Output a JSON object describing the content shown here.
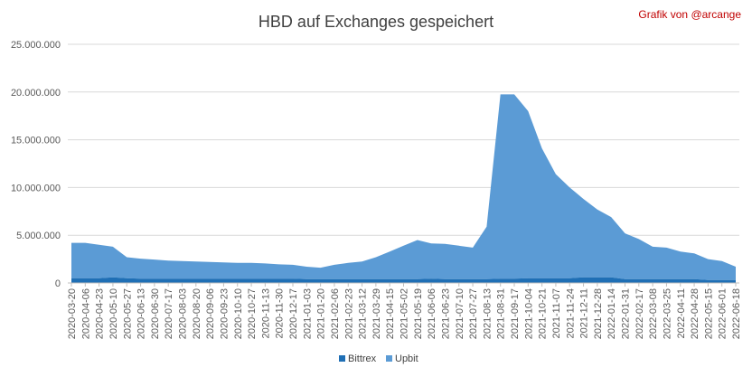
{
  "credit": "Grafik von @arcange",
  "colors": {
    "bittrex": "#1f6fb5",
    "upbit": "#5b9bd5",
    "grid": "#d9d9d9",
    "axis": "#bfbfbf"
  },
  "chart_data": {
    "type": "area",
    "stacked": true,
    "title": "HBD auf Exchanges gespeichert",
    "xlabel": "",
    "ylabel": "",
    "ylim": [
      0,
      25000000
    ],
    "y_ticks": [
      0,
      5000000,
      10000000,
      15000000,
      20000000,
      25000000
    ],
    "y_tick_labels": [
      "0",
      "5.000.000",
      "10.000.000",
      "15.000.000",
      "20.000.000",
      "25.000.000"
    ],
    "grid": true,
    "legend_position": "bottom",
    "x": [
      "2020-03-20",
      "2020-04-06",
      "2020-04-23",
      "2020-05-10",
      "2020-05-27",
      "2020-06-13",
      "2020-06-30",
      "2020-07-17",
      "2020-08-03",
      "2020-08-20",
      "2020-09-06",
      "2020-09-23",
      "2020-10-10",
      "2020-10-27",
      "2020-11-13",
      "2020-11-30",
      "2020-12-17",
      "2021-01-03",
      "2021-01-20",
      "2021-02-06",
      "2021-02-23",
      "2021-03-12",
      "2021-03-29",
      "2021-04-15",
      "2021-05-02",
      "2021-05-19",
      "2021-06-06",
      "2021-06-23",
      "2021-07-10",
      "2021-07-27",
      "2021-08-13",
      "2021-08-31",
      "2021-09-17",
      "2021-10-04",
      "2021-10-21",
      "2021-11-07",
      "2021-11-24",
      "2021-12-11",
      "2021-12-28",
      "2022-01-14",
      "2022-01-31",
      "2022-02-17",
      "2022-03-08",
      "2022-03-25",
      "2022-04-11",
      "2022-04-28",
      "2022-05-15",
      "2022-06-01",
      "2022-06-18"
    ],
    "series": [
      {
        "name": "Bittrex",
        "values": [
          500000,
          500000,
          500000,
          600000,
          500000,
          450000,
          450000,
          450000,
          450000,
          450000,
          450000,
          450000,
          450000,
          450000,
          450000,
          450000,
          450000,
          400000,
          400000,
          400000,
          400000,
          400000,
          400000,
          400000,
          400000,
          400000,
          450000,
          400000,
          400000,
          400000,
          400000,
          450000,
          450000,
          500000,
          500000,
          500000,
          500000,
          600000,
          600000,
          600000,
          400000,
          400000,
          400000,
          400000,
          400000,
          400000,
          300000,
          300000,
          300000
        ]
      },
      {
        "name": "Upbit",
        "values": [
          3700000,
          3700000,
          3500000,
          3200000,
          2200000,
          2100000,
          2000000,
          1900000,
          1850000,
          1800000,
          1750000,
          1700000,
          1650000,
          1650000,
          1600000,
          1500000,
          1450000,
          1300000,
          1200000,
          1500000,
          1700000,
          1850000,
          2300000,
          2900000,
          3500000,
          4100000,
          3700000,
          3700000,
          3500000,
          3300000,
          5500000,
          19300000,
          19300000,
          17500000,
          13600000,
          10900000,
          9500000,
          8200000,
          7100000,
          6300000,
          4800000,
          4200000,
          3400000,
          3300000,
          2900000,
          2700000,
          2200000,
          2000000,
          1400000
        ]
      }
    ]
  }
}
